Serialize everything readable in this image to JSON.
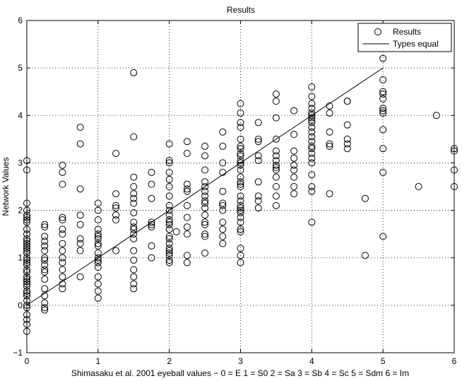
{
  "chart_data": {
    "type": "scatter",
    "title": "Results",
    "xlabel": "Shimasaku et al. 2001 eyeball values − 0 = E  1 = S0  2 = Sa  3 = Sb  4 = Sc  5 = Sdm  6 = Im",
    "ylabel": "Network Values",
    "xlim": [
      0,
      6
    ],
    "ylim": [
      -1,
      6
    ],
    "xticks": [
      "0",
      "1",
      "2",
      "3",
      "4",
      "5",
      "6"
    ],
    "yticks": [
      "−1",
      "0",
      "1",
      "2",
      "3",
      "4",
      "5",
      "6"
    ],
    "grid": true,
    "legend_position": "top-right",
    "legend": [
      "Results",
      "Types equal"
    ],
    "series": [
      {
        "name": "Types equal",
        "kind": "line",
        "points": [
          [
            0,
            0
          ],
          [
            5,
            5
          ]
        ]
      },
      {
        "name": "Results",
        "kind": "markers",
        "points": [
          [
            0,
            3.05
          ],
          [
            0,
            2.85
          ],
          [
            0,
            2.15
          ],
          [
            0,
            2.0
          ],
          [
            0,
            1.9
          ],
          [
            0,
            1.85
          ],
          [
            0,
            1.8
          ],
          [
            0,
            1.75
          ],
          [
            0,
            1.6
          ],
          [
            0,
            1.5
          ],
          [
            0,
            1.4
          ],
          [
            0,
            1.35
          ],
          [
            0,
            1.3
          ],
          [
            0,
            1.25
          ],
          [
            0,
            1.2
          ],
          [
            0,
            1.15
          ],
          [
            0,
            1.1
          ],
          [
            0,
            1.0
          ],
          [
            0,
            0.95
          ],
          [
            0,
            0.9
          ],
          [
            0,
            0.85
          ],
          [
            0,
            0.75
          ],
          [
            0,
            0.7
          ],
          [
            0,
            0.6
          ],
          [
            0,
            0.55
          ],
          [
            0,
            0.5
          ],
          [
            0,
            0.45
          ],
          [
            0,
            0.4
          ],
          [
            0,
            0.3
          ],
          [
            0,
            0.25
          ],
          [
            0,
            0.2
          ],
          [
            0,
            0.1
          ],
          [
            0,
            0.0
          ],
          [
            0,
            -0.05
          ],
          [
            0,
            -0.2
          ],
          [
            0,
            -0.3
          ],
          [
            0,
            -0.4
          ],
          [
            0,
            -0.55
          ],
          [
            0.25,
            1.7
          ],
          [
            0.25,
            1.65
          ],
          [
            0.25,
            1.45
          ],
          [
            0.25,
            1.35
          ],
          [
            0.25,
            1.25
          ],
          [
            0.25,
            1.15
          ],
          [
            0.25,
            1.0
          ],
          [
            0.25,
            0.95
          ],
          [
            0.25,
            0.85
          ],
          [
            0.25,
            0.75
          ],
          [
            0.25,
            0.7
          ],
          [
            0.25,
            0.55
          ],
          [
            0.25,
            0.35
          ],
          [
            0.25,
            0.2
          ],
          [
            0.25,
            0.05
          ],
          [
            0.25,
            -0.05
          ],
          [
            0.25,
            -0.1
          ],
          [
            0.5,
            2.95
          ],
          [
            0.5,
            2.8
          ],
          [
            0.5,
            2.55
          ],
          [
            0.5,
            1.85
          ],
          [
            0.5,
            1.8
          ],
          [
            0.5,
            1.6
          ],
          [
            0.5,
            1.5
          ],
          [
            0.5,
            1.3
          ],
          [
            0.5,
            1.15
          ],
          [
            0.5,
            1.0
          ],
          [
            0.5,
            0.9
          ],
          [
            0.5,
            0.75
          ],
          [
            0.5,
            0.6
          ],
          [
            0.5,
            0.45
          ],
          [
            0.5,
            0.35
          ],
          [
            0.75,
            3.75
          ],
          [
            0.75,
            3.4
          ],
          [
            0.75,
            2.45
          ],
          [
            0.75,
            1.9
          ],
          [
            0.75,
            1.7
          ],
          [
            0.75,
            1.4
          ],
          [
            0.75,
            1.3
          ],
          [
            0.75,
            1.15
          ],
          [
            0.75,
            0.6
          ],
          [
            1,
            2.15
          ],
          [
            1,
            2.0
          ],
          [
            1,
            1.8
          ],
          [
            1,
            1.6
          ],
          [
            1,
            1.5
          ],
          [
            1,
            1.45
          ],
          [
            1,
            1.4
          ],
          [
            1,
            1.3
          ],
          [
            1,
            1.25
          ],
          [
            1,
            1.1
          ],
          [
            1,
            1.0
          ],
          [
            1,
            0.95
          ],
          [
            1,
            0.9
          ],
          [
            1,
            0.8
          ],
          [
            1,
            0.6
          ],
          [
            1,
            0.45
          ],
          [
            1,
            0.3
          ],
          [
            1,
            0.15
          ],
          [
            1.25,
            3.2
          ],
          [
            1.25,
            2.35
          ],
          [
            1.25,
            2.1
          ],
          [
            1.25,
            2.05
          ],
          [
            1.25,
            1.9
          ],
          [
            1.25,
            1.8
          ],
          [
            1.25,
            1.15
          ],
          [
            1.5,
            4.9
          ],
          [
            1.5,
            3.55
          ],
          [
            1.5,
            2.7
          ],
          [
            1.5,
            2.5
          ],
          [
            1.5,
            2.35
          ],
          [
            1.5,
            2.25
          ],
          [
            1.5,
            2.15
          ],
          [
            1.5,
            1.95
          ],
          [
            1.5,
            1.75
          ],
          [
            1.5,
            1.65
          ],
          [
            1.5,
            1.6
          ],
          [
            1.5,
            1.5
          ],
          [
            1.5,
            1.4
          ],
          [
            1.5,
            1.15
          ],
          [
            1.5,
            0.95
          ],
          [
            1.5,
            0.75
          ],
          [
            1.5,
            0.6
          ],
          [
            1.5,
            0.45
          ],
          [
            1.5,
            0.35
          ],
          [
            1.75,
            2.8
          ],
          [
            1.75,
            2.55
          ],
          [
            1.75,
            2.25
          ],
          [
            1.75,
            1.75
          ],
          [
            1.75,
            1.7
          ],
          [
            1.75,
            1.65
          ],
          [
            1.75,
            1.25
          ],
          [
            1.75,
            1.0
          ],
          [
            2,
            3.4
          ],
          [
            2,
            3.05
          ],
          [
            2,
            3.0
          ],
          [
            2,
            2.8
          ],
          [
            2,
            2.65
          ],
          [
            2,
            2.5
          ],
          [
            2,
            2.3
          ],
          [
            2,
            2.1
          ],
          [
            2,
            2.0
          ],
          [
            2,
            1.9
          ],
          [
            2,
            1.8
          ],
          [
            2,
            1.75
          ],
          [
            2,
            1.7
          ],
          [
            2,
            1.6
          ],
          [
            2,
            1.45
          ],
          [
            2,
            1.4
          ],
          [
            2,
            1.3
          ],
          [
            2,
            1.2
          ],
          [
            2,
            1.15
          ],
          [
            2,
            1.1
          ],
          [
            2,
            1.05
          ],
          [
            2,
            0.95
          ],
          [
            2,
            0.9
          ],
          [
            2.1,
            1.55
          ],
          [
            2.25,
            3.45
          ],
          [
            2.25,
            3.2
          ],
          [
            2.25,
            2.55
          ],
          [
            2.25,
            2.45
          ],
          [
            2.25,
            2.4
          ],
          [
            2.25,
            2.1
          ],
          [
            2.25,
            1.85
          ],
          [
            2.25,
            1.65
          ],
          [
            2.25,
            1.5
          ],
          [
            2.25,
            1.05
          ],
          [
            2.25,
            0.9
          ],
          [
            2.5,
            3.35
          ],
          [
            2.5,
            3.15
          ],
          [
            2.5,
            2.85
          ],
          [
            2.5,
            2.6
          ],
          [
            2.5,
            2.5
          ],
          [
            2.5,
            2.4
          ],
          [
            2.5,
            2.3
          ],
          [
            2.5,
            2.2
          ],
          [
            2.5,
            2.15
          ],
          [
            2.5,
            2.05
          ],
          [
            2.5,
            1.9
          ],
          [
            2.5,
            1.75
          ],
          [
            2.5,
            1.7
          ],
          [
            2.5,
            1.5
          ],
          [
            2.5,
            1.45
          ],
          [
            2.5,
            1.1
          ],
          [
            2.75,
            3.65
          ],
          [
            2.75,
            3.35
          ],
          [
            2.75,
            3.0
          ],
          [
            2.75,
            2.8
          ],
          [
            2.75,
            2.4
          ],
          [
            2.75,
            2.15
          ],
          [
            2.75,
            2.1
          ],
          [
            2.75,
            2.0
          ],
          [
            2.75,
            1.75
          ],
          [
            2.75,
            1.6
          ],
          [
            2.75,
            1.45
          ],
          [
            2.75,
            1.3
          ],
          [
            3,
            4.25
          ],
          [
            3,
            4.05
          ],
          [
            3,
            3.85
          ],
          [
            3,
            3.75
          ],
          [
            3,
            3.5
          ],
          [
            3,
            3.35
          ],
          [
            3,
            3.3
          ],
          [
            3,
            3.2
          ],
          [
            3,
            3.15
          ],
          [
            3,
            3.05
          ],
          [
            3,
            3.0
          ],
          [
            3,
            2.95
          ],
          [
            3,
            2.85
          ],
          [
            3,
            2.7
          ],
          [
            3,
            2.6
          ],
          [
            3,
            2.55
          ],
          [
            3,
            2.5
          ],
          [
            3,
            2.3
          ],
          [
            3,
            2.2
          ],
          [
            3,
            2.1
          ],
          [
            3,
            2.05
          ],
          [
            3,
            2.0
          ],
          [
            3,
            1.95
          ],
          [
            3,
            1.85
          ],
          [
            3,
            1.75
          ],
          [
            3,
            1.6
          ],
          [
            3,
            1.55
          ],
          [
            3,
            1.2
          ],
          [
            3,
            1.05
          ],
          [
            3,
            0.9
          ],
          [
            3.25,
            3.85
          ],
          [
            3.25,
            3.5
          ],
          [
            3.25,
            3.45
          ],
          [
            3.25,
            3.15
          ],
          [
            3.25,
            3.05
          ],
          [
            3.25,
            2.6
          ],
          [
            3.25,
            2.3
          ],
          [
            3.25,
            2.2
          ],
          [
            3.25,
            2.05
          ],
          [
            3.5,
            4.45
          ],
          [
            3.5,
            4.3
          ],
          [
            3.5,
            3.95
          ],
          [
            3.5,
            3.5
          ],
          [
            3.5,
            3.25
          ],
          [
            3.5,
            3.15
          ],
          [
            3.5,
            3.05
          ],
          [
            3.5,
            2.95
          ],
          [
            3.5,
            2.9
          ],
          [
            3.5,
            2.85
          ],
          [
            3.5,
            2.7
          ],
          [
            3.5,
            2.5
          ],
          [
            3.5,
            2.3
          ],
          [
            3.5,
            2.1
          ],
          [
            3.75,
            4.1
          ],
          [
            3.75,
            3.6
          ],
          [
            3.75,
            3.25
          ],
          [
            3.75,
            3.1
          ],
          [
            3.75,
            2.95
          ],
          [
            3.75,
            2.85
          ],
          [
            3.75,
            2.7
          ],
          [
            3.75,
            2.5
          ],
          [
            3.75,
            2.35
          ],
          [
            4,
            4.6
          ],
          [
            4,
            4.4
          ],
          [
            4,
            4.25
          ],
          [
            4,
            4.15
          ],
          [
            4,
            4.05
          ],
          [
            4,
            4.0
          ],
          [
            4,
            3.95
          ],
          [
            4,
            3.9
          ],
          [
            4,
            3.85
          ],
          [
            4,
            3.75
          ],
          [
            4,
            3.65
          ],
          [
            4,
            3.55
          ],
          [
            4,
            3.45
          ],
          [
            4,
            3.35
          ],
          [
            4,
            3.3
          ],
          [
            4,
            3.2
          ],
          [
            4,
            3.1
          ],
          [
            4,
            3.0
          ],
          [
            4,
            2.75
          ],
          [
            4,
            2.5
          ],
          [
            4,
            2.4
          ],
          [
            4,
            1.75
          ],
          [
            4.25,
            4.2
          ],
          [
            4.25,
            4.05
          ],
          [
            4.25,
            3.65
          ],
          [
            4.25,
            3.4
          ],
          [
            4.25,
            3.35
          ],
          [
            4.25,
            2.35
          ],
          [
            4.5,
            4.3
          ],
          [
            4.5,
            4.3
          ],
          [
            4.5,
            3.8
          ],
          [
            4.5,
            3.5
          ],
          [
            4.5,
            3.4
          ],
          [
            4.5,
            3.3
          ],
          [
            4.75,
            2.25
          ],
          [
            4.75,
            1.05
          ],
          [
            5,
            5.2
          ],
          [
            5,
            4.75
          ],
          [
            5,
            4.5
          ],
          [
            5,
            4.45
          ],
          [
            5,
            4.35
          ],
          [
            5,
            4.15
          ],
          [
            5,
            4.1
          ],
          [
            5,
            4.05
          ],
          [
            5,
            3.7
          ],
          [
            5,
            3.3
          ],
          [
            5,
            2.8
          ],
          [
            5,
            1.45
          ],
          [
            5.5,
            2.5
          ],
          [
            5.75,
            4.0
          ],
          [
            6,
            3.3
          ],
          [
            6,
            3.25
          ],
          [
            6,
            2.85
          ],
          [
            6,
            2.5
          ]
        ]
      }
    ]
  }
}
